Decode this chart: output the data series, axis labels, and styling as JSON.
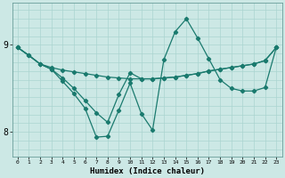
{
  "xlabel": "Humidex (Indice chaleur)",
  "bg_color": "#cce8e5",
  "line_color": "#1a7a6e",
  "grid_color": "#aad4d0",
  "xlim": [
    -0.5,
    23.5
  ],
  "ylim": [
    7.72,
    9.48
  ],
  "yticks": [
    8,
    9
  ],
  "xticks": [
    0,
    1,
    2,
    3,
    4,
    5,
    6,
    7,
    8,
    9,
    10,
    11,
    12,
    13,
    14,
    15,
    16,
    17,
    18,
    19,
    20,
    21,
    22,
    23
  ],
  "curve1_x": [
    0,
    1,
    2,
    3,
    4,
    5,
    6,
    7,
    8,
    9,
    10,
    11,
    12,
    13,
    14,
    15,
    16,
    17,
    18,
    19,
    20,
    21,
    22,
    23
  ],
  "curve1_y": [
    8.97,
    8.88,
    8.78,
    8.74,
    8.71,
    8.69,
    8.67,
    8.65,
    8.63,
    8.62,
    8.61,
    8.61,
    8.61,
    8.62,
    8.63,
    8.65,
    8.67,
    8.7,
    8.72,
    8.74,
    8.76,
    8.78,
    8.82,
    8.97
  ],
  "curve2_x": [
    0,
    1,
    2,
    3,
    4,
    5,
    6,
    7,
    8,
    9,
    10,
    11,
    12,
    13,
    14,
    15,
    16,
    17,
    18,
    19,
    20,
    21,
    22,
    23
  ],
  "curve2_y": [
    8.97,
    8.88,
    8.78,
    8.72,
    8.58,
    8.44,
    8.27,
    7.94,
    7.95,
    8.25,
    8.56,
    8.21,
    8.02,
    8.83,
    9.15,
    9.3,
    9.08,
    8.84,
    8.6,
    8.5,
    8.47,
    8.47,
    8.51,
    8.97
  ],
  "curve3_x": [
    0,
    2,
    3,
    4,
    5,
    6,
    7,
    8,
    9,
    10,
    11,
    12,
    13,
    14,
    15,
    16,
    17,
    18,
    19,
    20,
    21,
    22,
    23
  ],
  "curve3_y": [
    8.97,
    8.78,
    8.72,
    8.62,
    8.5,
    8.36,
    8.22,
    8.11,
    8.43,
    8.68,
    8.61,
    8.61,
    8.62,
    8.63,
    8.65,
    8.67,
    8.7,
    8.72,
    8.74,
    8.76,
    8.78,
    8.82,
    8.97
  ]
}
